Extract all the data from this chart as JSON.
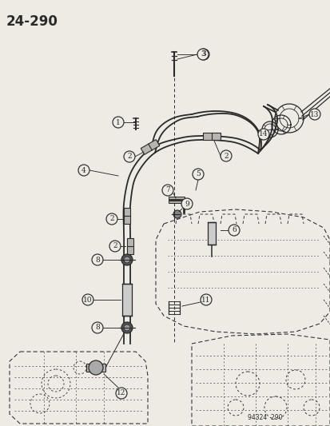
{
  "title": "24–290",
  "footer": "94324  290",
  "bg_color": "#eeebe5",
  "line_color": "#2a2a2a",
  "figsize": [
    4.14,
    5.33
  ],
  "dpi": 100
}
